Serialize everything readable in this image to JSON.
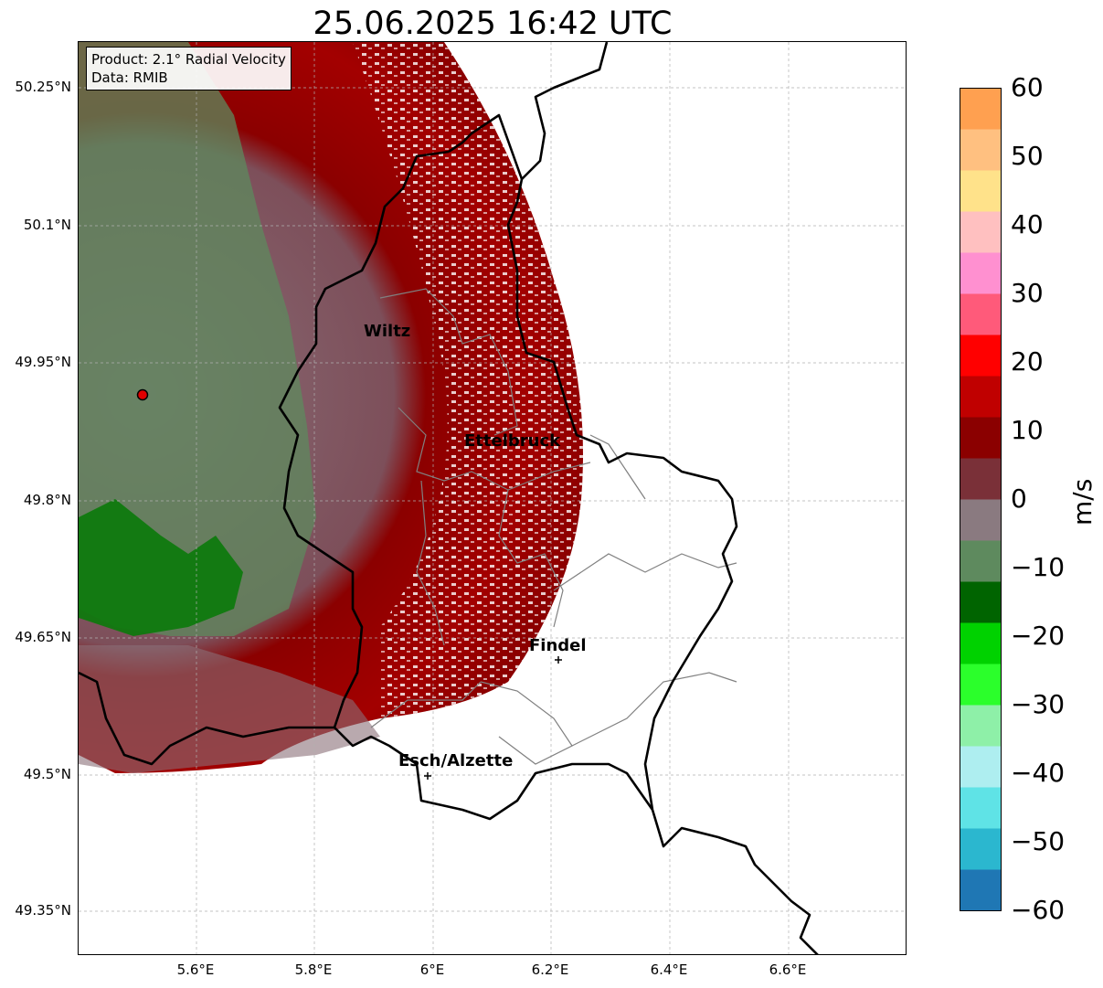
{
  "title": "25.06.2025 16:42 UTC",
  "info_box": {
    "product_line": "Product: 2.1° Radial Velocity",
    "data_line": "Data: RMIB"
  },
  "lat_labels": [
    "50.25°N",
    "50.1°N",
    "49.95°N",
    "49.8°N",
    "49.65°N",
    "49.5°N",
    "49.35°N"
  ],
  "lon_labels": [
    "5.6°E",
    "5.8°E",
    "6°E",
    "6.2°E",
    "6.4°E",
    "6.6°E"
  ],
  "cities": {
    "wiltz": "Wiltz",
    "ettelbruck": "Ettelbruck",
    "findel": "Findel",
    "esch": "Esch/Alzette"
  },
  "colorbar": {
    "unit": "m/s",
    "tick_labels": [
      "60",
      "50",
      "40",
      "30",
      "20",
      "10",
      "0",
      "−10",
      "−20",
      "−30",
      "−40",
      "−50",
      "−60"
    ],
    "range": [
      -60,
      60
    ],
    "colors": [
      "#1f77b4",
      "#2bb7cf",
      "#5fe3e6",
      "#aeeef0",
      "#8ef0a8",
      "#2bff2b",
      "#00d200",
      "#006400",
      "#5e8a5e",
      "#8a7a80",
      "#7a3038",
      "#8b0000",
      "#c00000",
      "#ff0000",
      "#ff5a7a",
      "#ff90d0",
      "#ffc0c0",
      "#ffe28a",
      "#ffc080",
      "#ffa050"
    ]
  },
  "radar_site": {
    "lon": 5.505,
    "lat": 49.914
  }
}
